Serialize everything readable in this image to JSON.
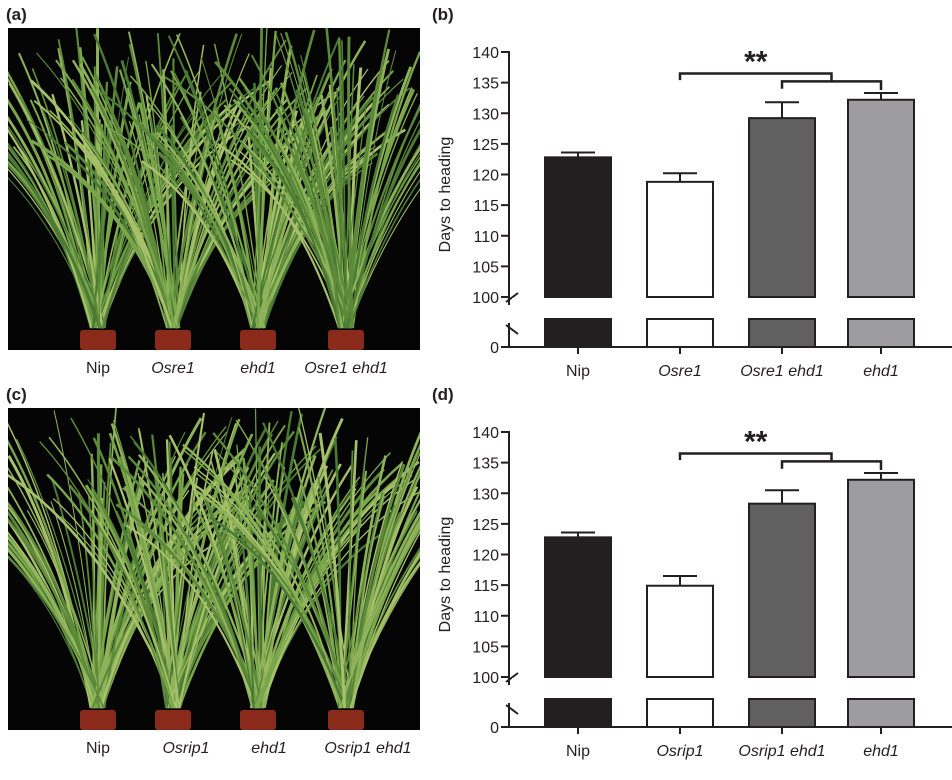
{
  "panels": {
    "a": {
      "label": "(a)",
      "genotypes": [
        "Nip",
        "Osre1",
        "ehd1",
        "Osre1 ehd1"
      ]
    },
    "b": {
      "label": "(b)"
    },
    "c": {
      "label": "(c)",
      "genotypes": [
        "Nip",
        "Osrip1",
        "ehd1",
        "Osrip1 ehd1"
      ]
    },
    "d": {
      "label": "(d)"
    }
  },
  "chart_data": [
    {
      "panel": "b",
      "type": "bar",
      "categories": [
        "Nip",
        "Osre1",
        "Osre1 ehd1",
        "ehd1"
      ],
      "values": [
        122.8,
        118.8,
        129.2,
        132.2
      ],
      "errors": [
        0.8,
        1.4,
        2.6,
        1.1
      ],
      "colors": [
        "#231f20",
        "#ffffff",
        "#606060",
        "#9d9ca1"
      ],
      "ylabel": "Days to heading",
      "yticks": [
        "0",
        "100",
        "105",
        "110",
        "115",
        "120",
        "125",
        "130",
        "135",
        "140"
      ],
      "ylim": [
        100,
        140
      ],
      "axis_break": true,
      "significance": "**"
    },
    {
      "panel": "d",
      "type": "bar",
      "categories": [
        "Nip",
        "Osrip1",
        "Osrip1 ehd1",
        "ehd1"
      ],
      "values": [
        122.8,
        114.9,
        128.3,
        132.2
      ],
      "errors": [
        0.8,
        1.6,
        2.2,
        1.1
      ],
      "colors": [
        "#231f20",
        "#ffffff",
        "#606060",
        "#9d9ca1"
      ],
      "ylabel": "Days to heading",
      "yticks": [
        "0",
        "100",
        "105",
        "110",
        "115",
        "120",
        "125",
        "130",
        "135",
        "140"
      ],
      "ylim": [
        100,
        140
      ],
      "axis_break": true,
      "significance": "**"
    }
  ]
}
